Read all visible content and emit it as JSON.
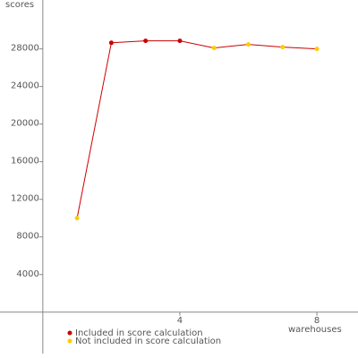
{
  "chart_data": {
    "type": "line",
    "y_label": "scores",
    "x_label": "warehouses",
    "x": [
      1,
      2,
      3,
      4,
      5,
      6,
      7,
      8
    ],
    "values": [
      10000,
      28650,
      28860,
      28860,
      28100,
      28480,
      28190,
      28000
    ],
    "line_color": "#cc0000",
    "point_colors": [
      "#ffcc00",
      "#cc0000",
      "#cc0000",
      "#cc0000",
      "#ffcc00",
      "#ffcc00",
      "#ffcc00",
      "#ffcc00"
    ],
    "legend": [
      {
        "name": "Included in score calculation",
        "color": "#cc0000"
      },
      {
        "name": "Not included in score calculation",
        "color": "#ffcc00"
      }
    ],
    "xlim": [
      -1.25,
      9.2
    ],
    "xticks": [
      4,
      8
    ],
    "ylim": [
      -4400,
      33200
    ],
    "yticks": [
      4000,
      8000,
      12000,
      16000,
      20000,
      24000,
      28000
    ]
  }
}
